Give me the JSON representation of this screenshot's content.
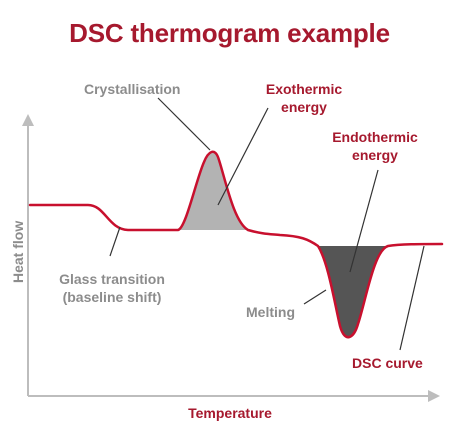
{
  "title": "DSC thermogram example",
  "colors": {
    "accent": "#a6192e",
    "gray_text": "#8c8c8c",
    "axis": "#bdbdbd",
    "exo_fill": "#b3b3b3",
    "endo_fill": "#555555",
    "leader": "#333333"
  },
  "labels": {
    "crystallisation": "Crystallisation",
    "exothermic": [
      "Exothermic",
      "energy"
    ],
    "endothermic": [
      "Endothermic",
      "energy"
    ],
    "glass": [
      "Glass transition",
      "(baseline shift)"
    ],
    "melting": "Melting",
    "dsc_curve": "DSC curve"
  },
  "axes": {
    "x_label": "Temperature",
    "y_label": "Heat flow"
  }
}
